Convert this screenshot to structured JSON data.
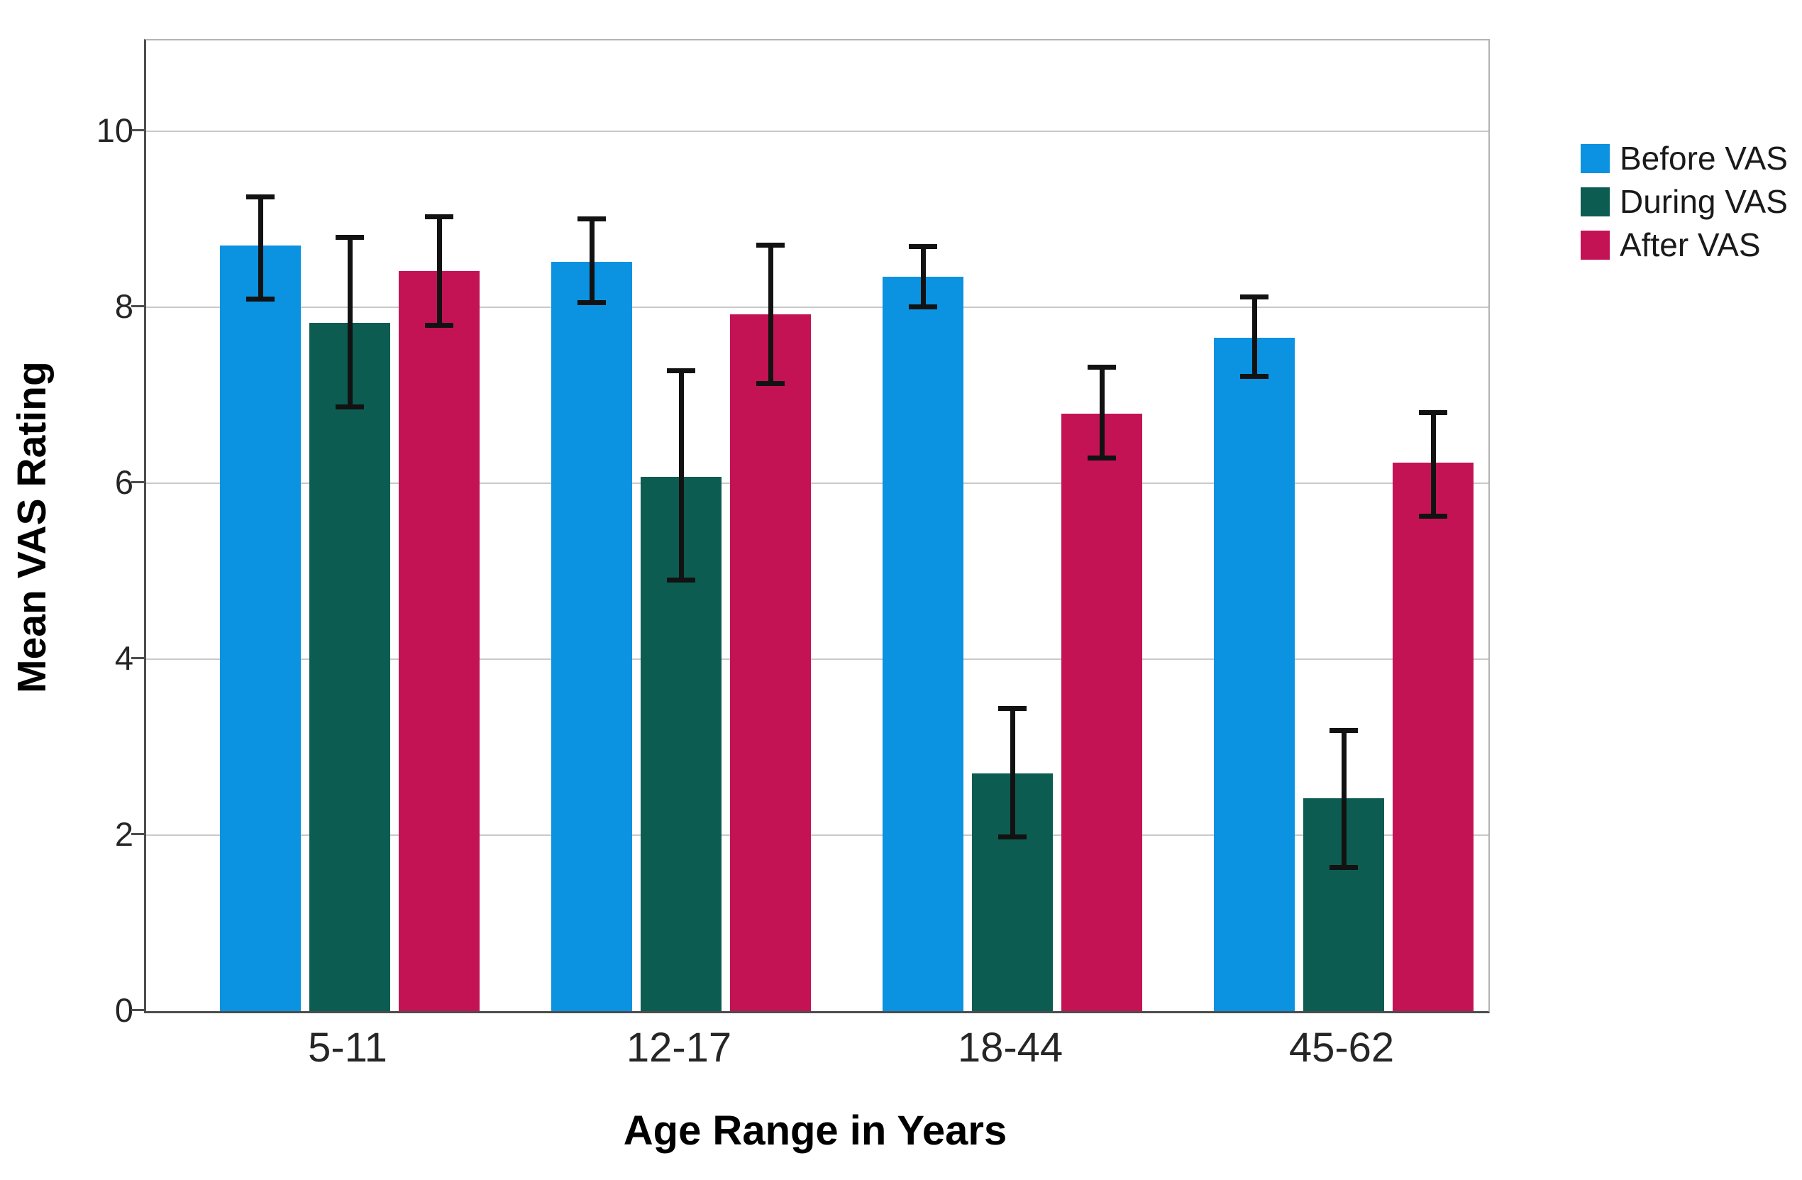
{
  "figure": {
    "background": "#ffffff"
  },
  "colors": {
    "gridline": "#c9c9c9",
    "axis_dark": "#4d4d4d",
    "frame_light": "#b3b3b3",
    "tick_label": "#262626",
    "error_bar": "#121212",
    "before_vas": "#0b92e0",
    "during_vas": "#0d5c52",
    "after_vas": "#c41355"
  },
  "legend": {
    "position": "top-right",
    "items": [
      {
        "label": "Before VAS",
        "color": "#0b92e0"
      },
      {
        "label": "During VAS",
        "color": "#0d5c52"
      },
      {
        "label": "After VAS",
        "color": "#c41355"
      }
    ]
  },
  "chart_data": {
    "type": "bar",
    "title": "",
    "xlabel": "Age Range in Years",
    "ylabel": "Mean VAS Rating",
    "ylim": [
      0,
      11
    ],
    "yticks": [
      0,
      2,
      4,
      6,
      8,
      10
    ],
    "grid": true,
    "gridline_values": [
      2,
      4,
      6,
      8,
      10
    ],
    "legend_position": "top-right",
    "error_bars": true,
    "categories": [
      "5-11",
      "12-17",
      "18-44",
      "45-62"
    ],
    "series": [
      {
        "name": "Before VAS",
        "color": "#0b92e0",
        "values": [
          8.7,
          8.52,
          8.35,
          7.65
        ],
        "error_low": [
          8.1,
          8.06,
          8.01,
          7.22
        ],
        "error_high": [
          9.26,
          9.01,
          8.69,
          8.12
        ]
      },
      {
        "name": "During VAS",
        "color": "#0d5c52",
        "values": [
          7.82,
          6.07,
          2.7,
          2.42
        ],
        "error_low": [
          6.87,
          4.9,
          1.98,
          1.64
        ],
        "error_high": [
          8.8,
          7.28,
          3.44,
          3.19
        ]
      },
      {
        "name": "After VAS",
        "color": "#c41355",
        "values": [
          8.41,
          7.92,
          6.79,
          6.23
        ],
        "error_low": [
          7.8,
          7.14,
          6.29,
          5.63
        ],
        "error_high": [
          9.03,
          8.71,
          7.32,
          6.81
        ]
      }
    ]
  }
}
